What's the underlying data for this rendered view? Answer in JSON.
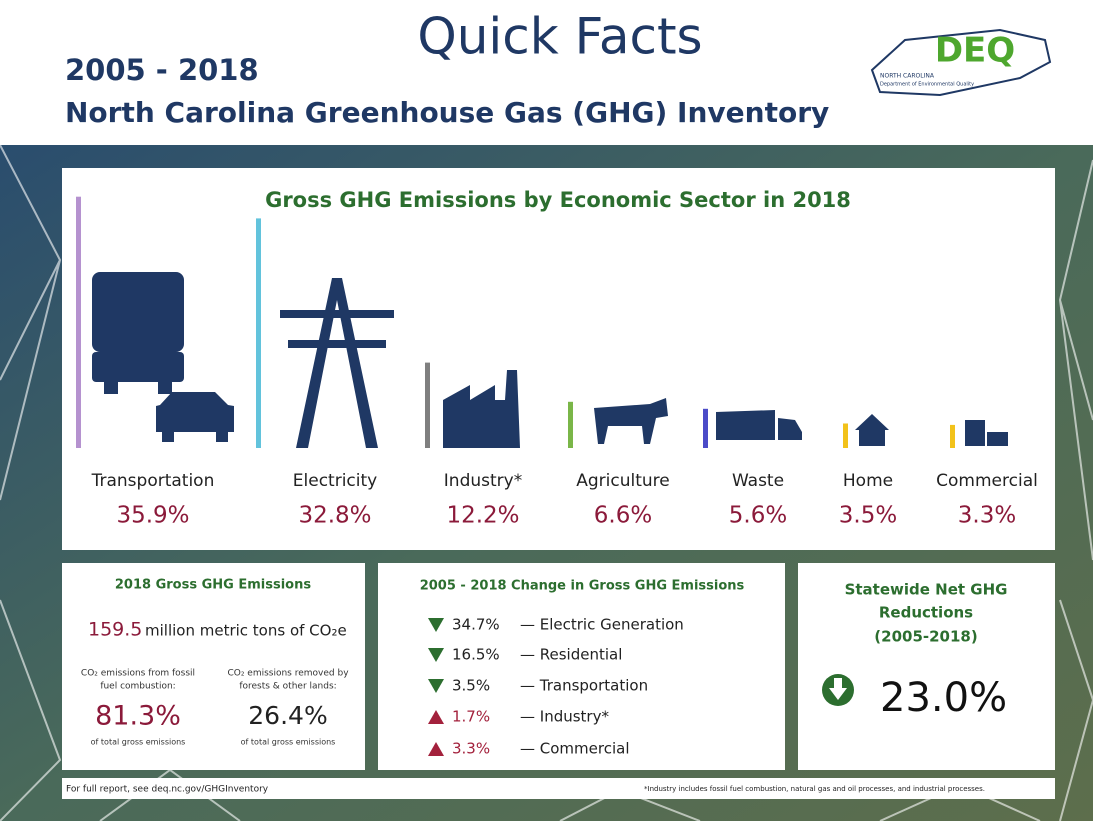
{
  "header": {
    "title": "Quick Facts",
    "years": "2005 - 2018",
    "subtitle": "North Carolina Greenhouse Gas (GHG) Inventory",
    "logo": {
      "name": "DEQ",
      "state": "NORTH CAROLINA",
      "agency": "Department of Environmental Quality"
    }
  },
  "sectors": {
    "title": "Gross GHG Emissions by Economic Sector in 2018",
    "items": [
      {
        "name": "Transportation",
        "value": 35.9,
        "value_label": "35.9%",
        "color": "#b592cf"
      },
      {
        "name": "Electricity",
        "value": 32.8,
        "value_label": "32.8%",
        "color": "#62c3dc"
      },
      {
        "name": "Industry*",
        "value": 12.2,
        "value_label": "12.2%",
        "color": "#7f7f7f"
      },
      {
        "name": "Agriculture",
        "value": 6.6,
        "value_label": "6.6%",
        "color": "#7ab648"
      },
      {
        "name": "Waste",
        "value": 5.6,
        "value_label": "5.6%",
        "color": "#4b4bc8"
      },
      {
        "name": "Home",
        "value": 3.5,
        "value_label": "3.5%",
        "color": "#f2c21a"
      },
      {
        "name": "Commercial",
        "value": 3.3,
        "value_label": "3.3%",
        "color": "#f2c21a"
      }
    ]
  },
  "emissions": {
    "title": "2018 Gross GHG Emissions",
    "total": "159.5",
    "total_unit": "million metric tons of CO₂e",
    "left": {
      "lines": [
        "CO₂ emissions from fossil",
        "fuel combustion:"
      ],
      "value": "81.3%",
      "note": "of total gross emissions"
    },
    "right": {
      "lines": [
        "CO₂ emissions removed by",
        "forests & other lands:"
      ],
      "value": "26.4%",
      "note": "of total gross emissions"
    }
  },
  "change": {
    "title": "2005 - 2018 Change in Gross GHG Emissions",
    "rows": [
      {
        "direction": "down",
        "value": "34.7%",
        "name": "— Electric Generation"
      },
      {
        "direction": "down",
        "value": "16.5%",
        "name": "— Residential"
      },
      {
        "direction": "down",
        "value": "3.5%",
        "name": "— Transportation"
      },
      {
        "direction": "up",
        "value": "1.7%",
        "name": "— Industry*"
      },
      {
        "direction": "up",
        "value": "3.3%",
        "name": "— Commercial"
      }
    ]
  },
  "net": {
    "lines": [
      "Statewide Net GHG",
      "Reductions",
      "(2005-2018)"
    ],
    "value": "23.0%"
  },
  "footer": {
    "left": "For full report, see deq.nc.gov/GHGInventory",
    "right": "*Industry includes fossil fuel combustion, natural gas and oil processes, and industrial processes."
  }
}
